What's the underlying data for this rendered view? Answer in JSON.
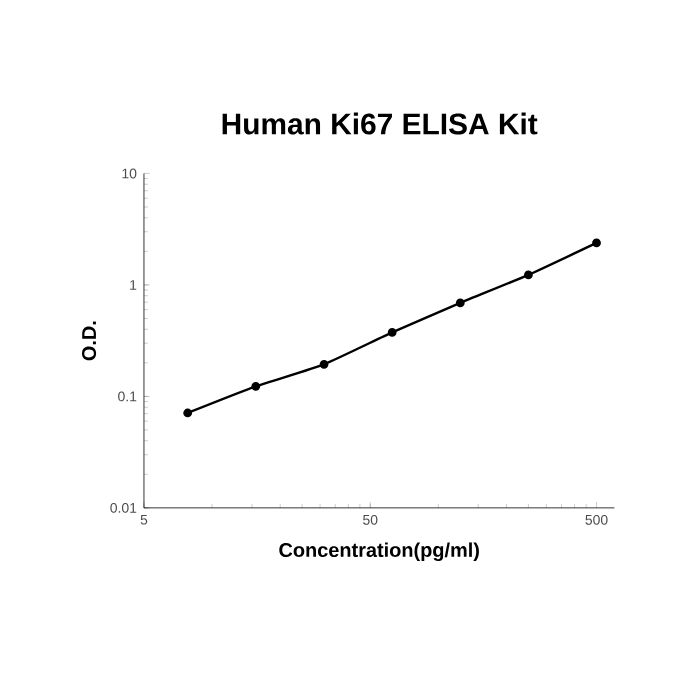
{
  "chart_data": {
    "type": "line",
    "title": "Human Ki67 ELISA Kit",
    "xlabel": "Concentration(pg/ml)",
    "ylabel": "O.D.",
    "log": "xy",
    "grid": false,
    "marker": "circle",
    "line_style": "solid",
    "x": [
      7.8,
      15.6,
      31.25,
      62.5,
      125,
      250,
      500
    ],
    "series": [
      {
        "color": "#000000",
        "values": [
          0.071,
          0.123,
          0.194,
          0.375,
          0.69,
          1.23,
          2.38
        ]
      }
    ],
    "xlim": [
      5,
      600
    ],
    "xticks": [
      5,
      50,
      500
    ],
    "ylim": [
      0.01,
      10
    ],
    "yticks": [
      0.01,
      0.1,
      1,
      10
    ]
  }
}
